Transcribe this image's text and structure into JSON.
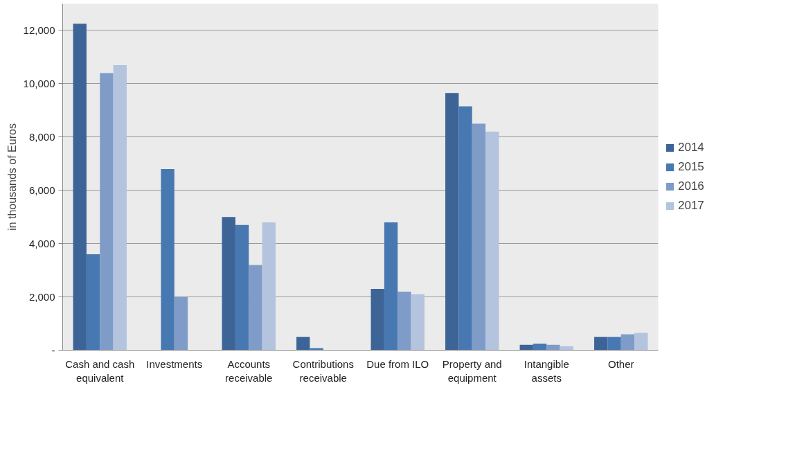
{
  "chart_data": {
    "type": "bar",
    "ylabel": "in thousands of Euros",
    "categories": [
      "Cash and cash equivalent",
      "Investments",
      "Accounts receivable",
      "Contributions receivable",
      "Due from ILO",
      "Property and equipment",
      "Intangible assets",
      "Other"
    ],
    "series": [
      {
        "name": "2014",
        "color": "#3d6497",
        "values": [
          12250,
          null,
          5000,
          500,
          2300,
          9650,
          200,
          500
        ]
      },
      {
        "name": "2015",
        "color": "#4878b2",
        "values": [
          3600,
          6800,
          4700,
          80,
          4800,
          9150,
          250,
          500
        ]
      },
      {
        "name": "2016",
        "color": "#7f9cc9",
        "values": [
          10400,
          2000,
          3200,
          null,
          2200,
          8500,
          200,
          600
        ]
      },
      {
        "name": "2017",
        "color": "#b4c3de",
        "values": [
          10700,
          null,
          4800,
          null,
          2100,
          8200,
          150,
          650
        ]
      }
    ],
    "ylim": [
      0,
      13000
    ],
    "yticks": [
      {
        "value": 0,
        "label": "-"
      },
      {
        "value": 2000,
        "label": "2,000"
      },
      {
        "value": 4000,
        "label": "4,000"
      },
      {
        "value": 6000,
        "label": "6,000"
      },
      {
        "value": 8000,
        "label": "8,000"
      },
      {
        "value": 10000,
        "label": "10,000"
      },
      {
        "value": 12000,
        "label": "12,000"
      }
    ],
    "grid": "y",
    "legend": "right"
  }
}
